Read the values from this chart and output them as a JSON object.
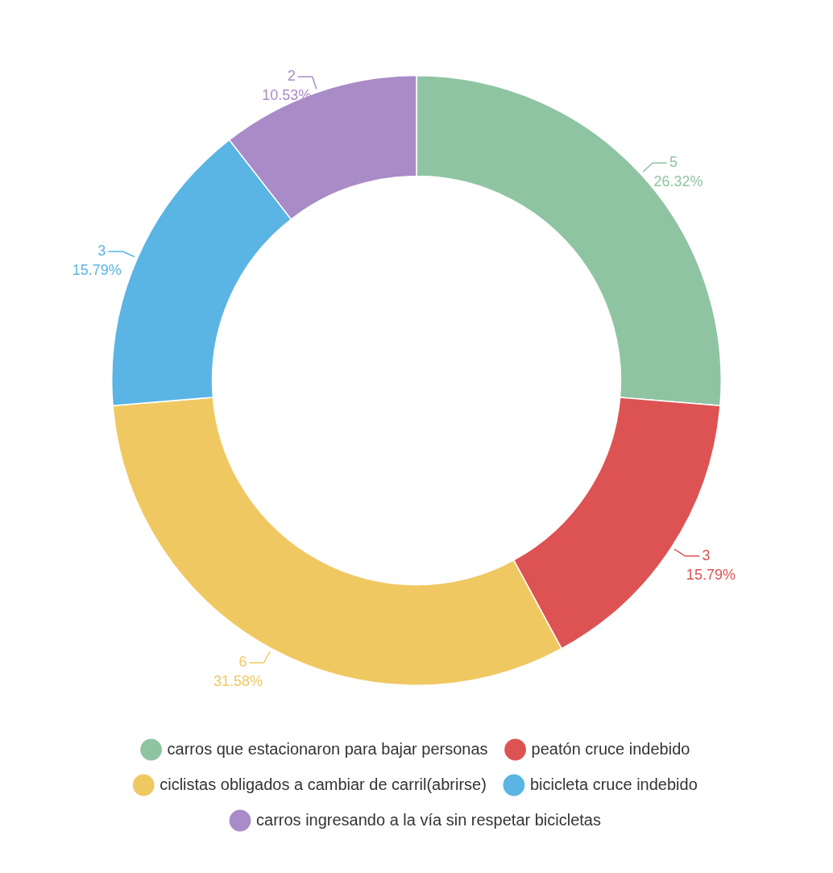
{
  "chart_data": {
    "type": "donut",
    "categories": [
      "carros que estacionaron para bajar personas",
      "peatón cruce indebido",
      "ciclistas obligados a cambiar de carril(abrirse)",
      "bicicleta cruce indebido",
      "carros ingresando a la vía sin respetar bicicletas"
    ],
    "values": [
      5,
      3,
      6,
      3,
      2
    ],
    "value_labels": [
      "5\n26.32%",
      "3\n15.79%",
      "6\n31.58%",
      "3\n15.79%",
      "2\n10.53%"
    ],
    "colors": [
      "#8fc4a2",
      "#dd5353",
      "#f0c862",
      "#5ab4e4",
      "#a98bc8"
    ],
    "legend": "bottom"
  }
}
